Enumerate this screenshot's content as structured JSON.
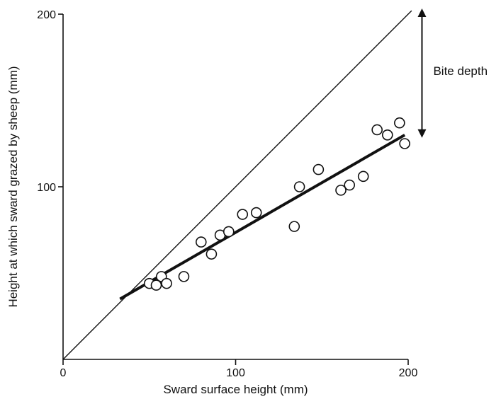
{
  "chart_data": {
    "type": "scatter",
    "title": "",
    "xlabel": "Sward surface height (mm)",
    "ylabel": "Height at which sward grazed by sheep (mm)",
    "xlim": [
      0,
      200
    ],
    "ylim": [
      0,
      200
    ],
    "x_ticks": [
      0,
      100,
      200
    ],
    "y_ticks": [
      100,
      200
    ],
    "x_tick_labels": [
      "0",
      "100",
      "200"
    ],
    "y_tick_labels": [
      "100",
      "200"
    ],
    "grid": false,
    "points": [
      {
        "x": 50,
        "y": 44
      },
      {
        "x": 54,
        "y": 43
      },
      {
        "x": 57,
        "y": 48
      },
      {
        "x": 60,
        "y": 44
      },
      {
        "x": 70,
        "y": 48
      },
      {
        "x": 80,
        "y": 68
      },
      {
        "x": 86,
        "y": 61
      },
      {
        "x": 91,
        "y": 72
      },
      {
        "x": 96,
        "y": 74
      },
      {
        "x": 104,
        "y": 84
      },
      {
        "x": 112,
        "y": 85
      },
      {
        "x": 134,
        "y": 77
      },
      {
        "x": 137,
        "y": 100
      },
      {
        "x": 148,
        "y": 110
      },
      {
        "x": 161,
        "y": 98
      },
      {
        "x": 166,
        "y": 101
      },
      {
        "x": 174,
        "y": 106
      },
      {
        "x": 182,
        "y": 133
      },
      {
        "x": 188,
        "y": 130
      },
      {
        "x": 195,
        "y": 137
      },
      {
        "x": 198,
        "y": 125
      }
    ],
    "regression_line": {
      "x": [
        33,
        198
      ],
      "y": [
        35,
        130
      ]
    },
    "identity_line": {
      "x": [
        0,
        200
      ],
      "y": [
        0,
        200
      ]
    },
    "annotation": {
      "text": "Bite depth",
      "arrow_x": 208,
      "arrow_y": [
        130,
        200
      ]
    }
  }
}
